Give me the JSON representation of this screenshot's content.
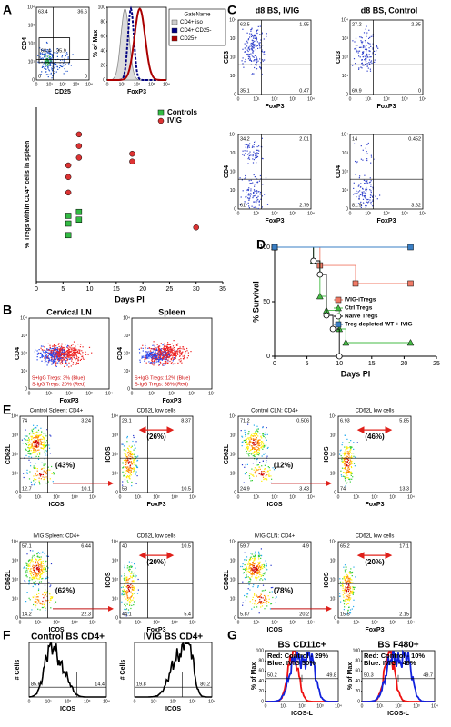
{
  "panel_labels": [
    "A",
    "B",
    "C",
    "D",
    "E",
    "F",
    "G"
  ],
  "log_ticks": [
    "0",
    "10¹",
    "10²",
    "10³",
    "10⁴"
  ],
  "panel_a_flow": {
    "y_label": "CD4",
    "x_label": "CD25",
    "quadrants": [
      63.4,
      36.6,
      0,
      0
    ],
    "gate": [
      63.4,
      35.9
    ]
  },
  "panel_a_histogram": {
    "y_label": "% of Max",
    "x_label": "FoxP3",
    "yticks": [
      0,
      20,
      40,
      60,
      80,
      100
    ],
    "legend_title": "GateName",
    "legend": [
      "CD4+ iso",
      "CD4+ CD25-",
      "CD25+"
    ]
  },
  "panel_b": [
    {
      "title": "Cervical LN",
      "y_label": "CD4",
      "x_label": "FoxP3",
      "notes": [
        "S+IgG Tregs: 3% (Blue)",
        "S-IgG Tregs: 20% (Red)"
      ]
    },
    {
      "title": "Spleen",
      "y_label": "CD4",
      "x_label": "FoxP3",
      "notes": [
        "S+IgG Tregs: 12% (Blue)",
        "S-IgG Tregs: 38% (Red)"
      ]
    }
  ],
  "panel_c": {
    "titles": [
      "d8 BS, IVIG",
      "d8 BS, Control"
    ],
    "plots": [
      {
        "y_label": "CD3",
        "x_label": "FoxP3",
        "quadrants": [
          62.5,
          1.95,
          35.1,
          0.47
        ]
      },
      {
        "y_label": "CD3",
        "x_label": "FoxP3",
        "quadrants": [
          27.2,
          2.85,
          69.9,
          0
        ]
      },
      {
        "y_label": "CD4",
        "x_label": "FoxP3",
        "quadrants": [
          34.2,
          2.01,
          61,
          2.79
        ]
      },
      {
        "y_label": "CD4",
        "x_label": "FoxP3",
        "quadrants": [
          14,
          0.452,
          81.9,
          3.62
        ]
      }
    ]
  },
  "panel_e": [
    {
      "title": "Control Spleen: CD4+",
      "y_label": "CD62L",
      "x_label": "ICOS",
      "quadrants": [
        74,
        3.24,
        12.7,
        10.1
      ],
      "annotation": "(43%)"
    },
    {
      "title": "CD62L low cells",
      "y_label": "ICOS",
      "x_label": "FoxP3",
      "quadrants": [
        23.1,
        8.37,
        58,
        10.5
      ],
      "annotation": "(26%)"
    },
    {
      "title": "Control CLN: CD4+",
      "y_label": "CD62L",
      "x_label": "ICOS",
      "quadrants": [
        71.2,
        0.506,
        24.9,
        3.43
      ],
      "annotation": "(12%)"
    },
    {
      "title": "CD62L low cells",
      "y_label": "ICOS",
      "x_label": "FoxP3",
      "quadrants": [
        6.93,
        5.85,
        74,
        13.3
      ],
      "annotation": "(46%)"
    },
    {
      "title": "IVIG Spleen: CD4+",
      "y_label": "CD62L",
      "x_label": "ICOS",
      "quadrants": [
        57.1,
        6.44,
        14.2,
        22.3
      ],
      "annotation": "(62%)"
    },
    {
      "title": "CD62L low cells",
      "y_label": "ICOS",
      "x_label": "FoxP3",
      "quadrants": [
        40,
        10.5,
        44.1,
        5.4
      ],
      "annotation": "(20%)"
    },
    {
      "title": "IVIG CLN: CD4+",
      "y_label": "CD62L",
      "x_label": "ICOS",
      "quadrants": [
        59.7,
        4.9,
        5.87,
        20.2
      ],
      "annotation": "(78%)"
    },
    {
      "title": "CD62L low cells",
      "y_label": "ICOS",
      "x_label": "FoxP3",
      "quadrants": [
        65.2,
        17.1,
        15.5,
        2.15
      ],
      "annotation": "(20%)"
    }
  ],
  "panel_f": [
    {
      "title": "Control BS CD4+",
      "y_label": "# Cells",
      "x_label": "ICOS",
      "gates": [
        85.6,
        14.4
      ]
    },
    {
      "title": "IVIG BS CD4+",
      "y_label": "# Cells",
      "x_label": "ICOS",
      "gates": [
        19.8,
        80.2
      ]
    }
  ],
  "panel_g": [
    {
      "title": "BS CD11c+",
      "y_label": "% of Max",
      "x_label": "ICOS-L",
      "yticks": [
        0,
        20,
        40,
        60,
        80,
        100
      ],
      "notes": [
        "Red:  Control - 29%",
        "Blue:  IVIG      50%"
      ],
      "gates": [
        50.2,
        49.8
      ]
    },
    {
      "title": "BS F480+",
      "y_label": "% of Max",
      "x_label": "ICOS-L",
      "yticks": [
        0,
        20,
        40,
        60,
        80,
        100
      ],
      "notes": [
        "Red:  Control - 10%",
        "Blue:  IVIG - 49%"
      ],
      "gates": [
        50.3,
        49.7
      ]
    }
  ],
  "chart_data": [
    {
      "type": "scatter",
      "x_label": "Days PI",
      "y_label": "% Tregs within CD4⁺ cells in spleen",
      "xlim": [
        0,
        35
      ],
      "xticks": [
        0,
        5,
        10,
        15,
        20,
        25,
        30,
        35
      ],
      "ylim": [
        0,
        45
      ],
      "legend": "upper right",
      "series": [
        {
          "name": "Controls",
          "color": "#33bb44",
          "marker": "square",
          "x": [
            6,
            6,
            6,
            8,
            8
          ],
          "y": [
            12,
            15,
            17,
            16,
            18
          ]
        },
        {
          "name": "IVIG",
          "color": "#dd3333",
          "marker": "circle",
          "x": [
            6,
            6,
            6,
            8,
            8,
            8,
            18,
            18,
            30
          ],
          "y": [
            23,
            27,
            30,
            32,
            35,
            38,
            31,
            33,
            14
          ]
        }
      ]
    },
    {
      "type": "step",
      "x_label": "Days PI",
      "y_label": "% Survival",
      "xlim": [
        0,
        25
      ],
      "xticks": [
        0,
        5,
        10,
        15,
        20,
        25
      ],
      "ylim": [
        0,
        100
      ],
      "yticks": [
        0,
        50,
        100
      ],
      "legend": "lower right",
      "series": [
        {
          "name": "IVIG-iTregs",
          "color": "#f07a66",
          "marker": "square",
          "x": [
            0,
            7,
            12.5,
            21
          ],
          "y": [
            100,
            83.3,
            66.7,
            66.7
          ]
        },
        {
          "name": "Ctrl Tregs",
          "color": "#44bb44",
          "marker": "triangle",
          "x": [
            0,
            6,
            7,
            8,
            10,
            11,
            21
          ],
          "y": [
            100,
            87.5,
            55,
            42,
            25,
            12.5,
            12.5
          ]
        },
        {
          "name": "Naive Tregs",
          "color": "#000000",
          "marker": "open-circle",
          "x": [
            0,
            6,
            7,
            8,
            9,
            10
          ],
          "y": [
            100,
            87.5,
            75,
            37.5,
            25,
            0
          ]
        },
        {
          "name": "Treg depleted WT + IVIG",
          "color": "#3a7fc4",
          "marker": "square",
          "x": [
            0,
            21
          ],
          "y": [
            100,
            100
          ]
        }
      ]
    }
  ]
}
